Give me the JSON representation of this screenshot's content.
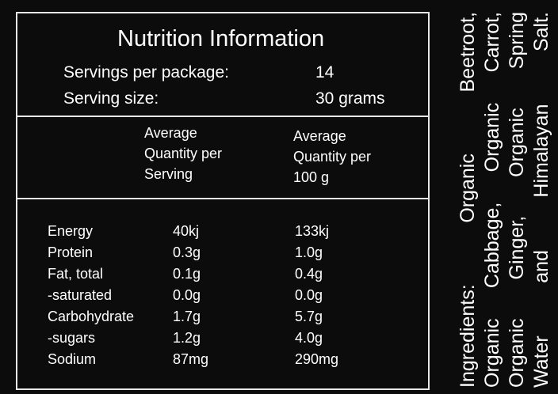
{
  "panel": {
    "title": "Nutrition Information",
    "servings_per_package_label": "Servings per package:",
    "servings_per_package_value": "14",
    "serving_size_label": "Serving size:",
    "serving_size_value": "30 grams",
    "col_headers": [
      [
        "Average",
        "Quantity per",
        "Serving"
      ],
      [
        "Average",
        "Quantity per",
        "100 g"
      ]
    ],
    "rows": [
      {
        "name": "Energy",
        "per_serving": "40kj",
        "per_100g": "133kj"
      },
      {
        "name": "Protein",
        "per_serving": "0.3g",
        "per_100g": "1.0g"
      },
      {
        "name": "Fat, total",
        "per_serving": "0.1g",
        "per_100g": "0.4g"
      },
      {
        "name": "-saturated",
        "per_serving": "0.0g",
        "per_100g": "0.0g"
      },
      {
        "name": "Carbohydrate",
        "per_serving": "1.7g",
        "per_100g": "5.7g"
      },
      {
        "name": "-sugars",
        "per_serving": "1.2g",
        "per_100g": "4.0g"
      },
      {
        "name": "Sodium",
        "per_serving": "87mg",
        "per_100g": "290mg"
      }
    ]
  },
  "ingredients": {
    "lines": [
      "Ingredients: Organic Beetroot,",
      "Organic Cabbage, Organic Carrot,",
      "Organic Ginger, Organic Spring",
      "Water and Himalayan Salt."
    ]
  }
}
